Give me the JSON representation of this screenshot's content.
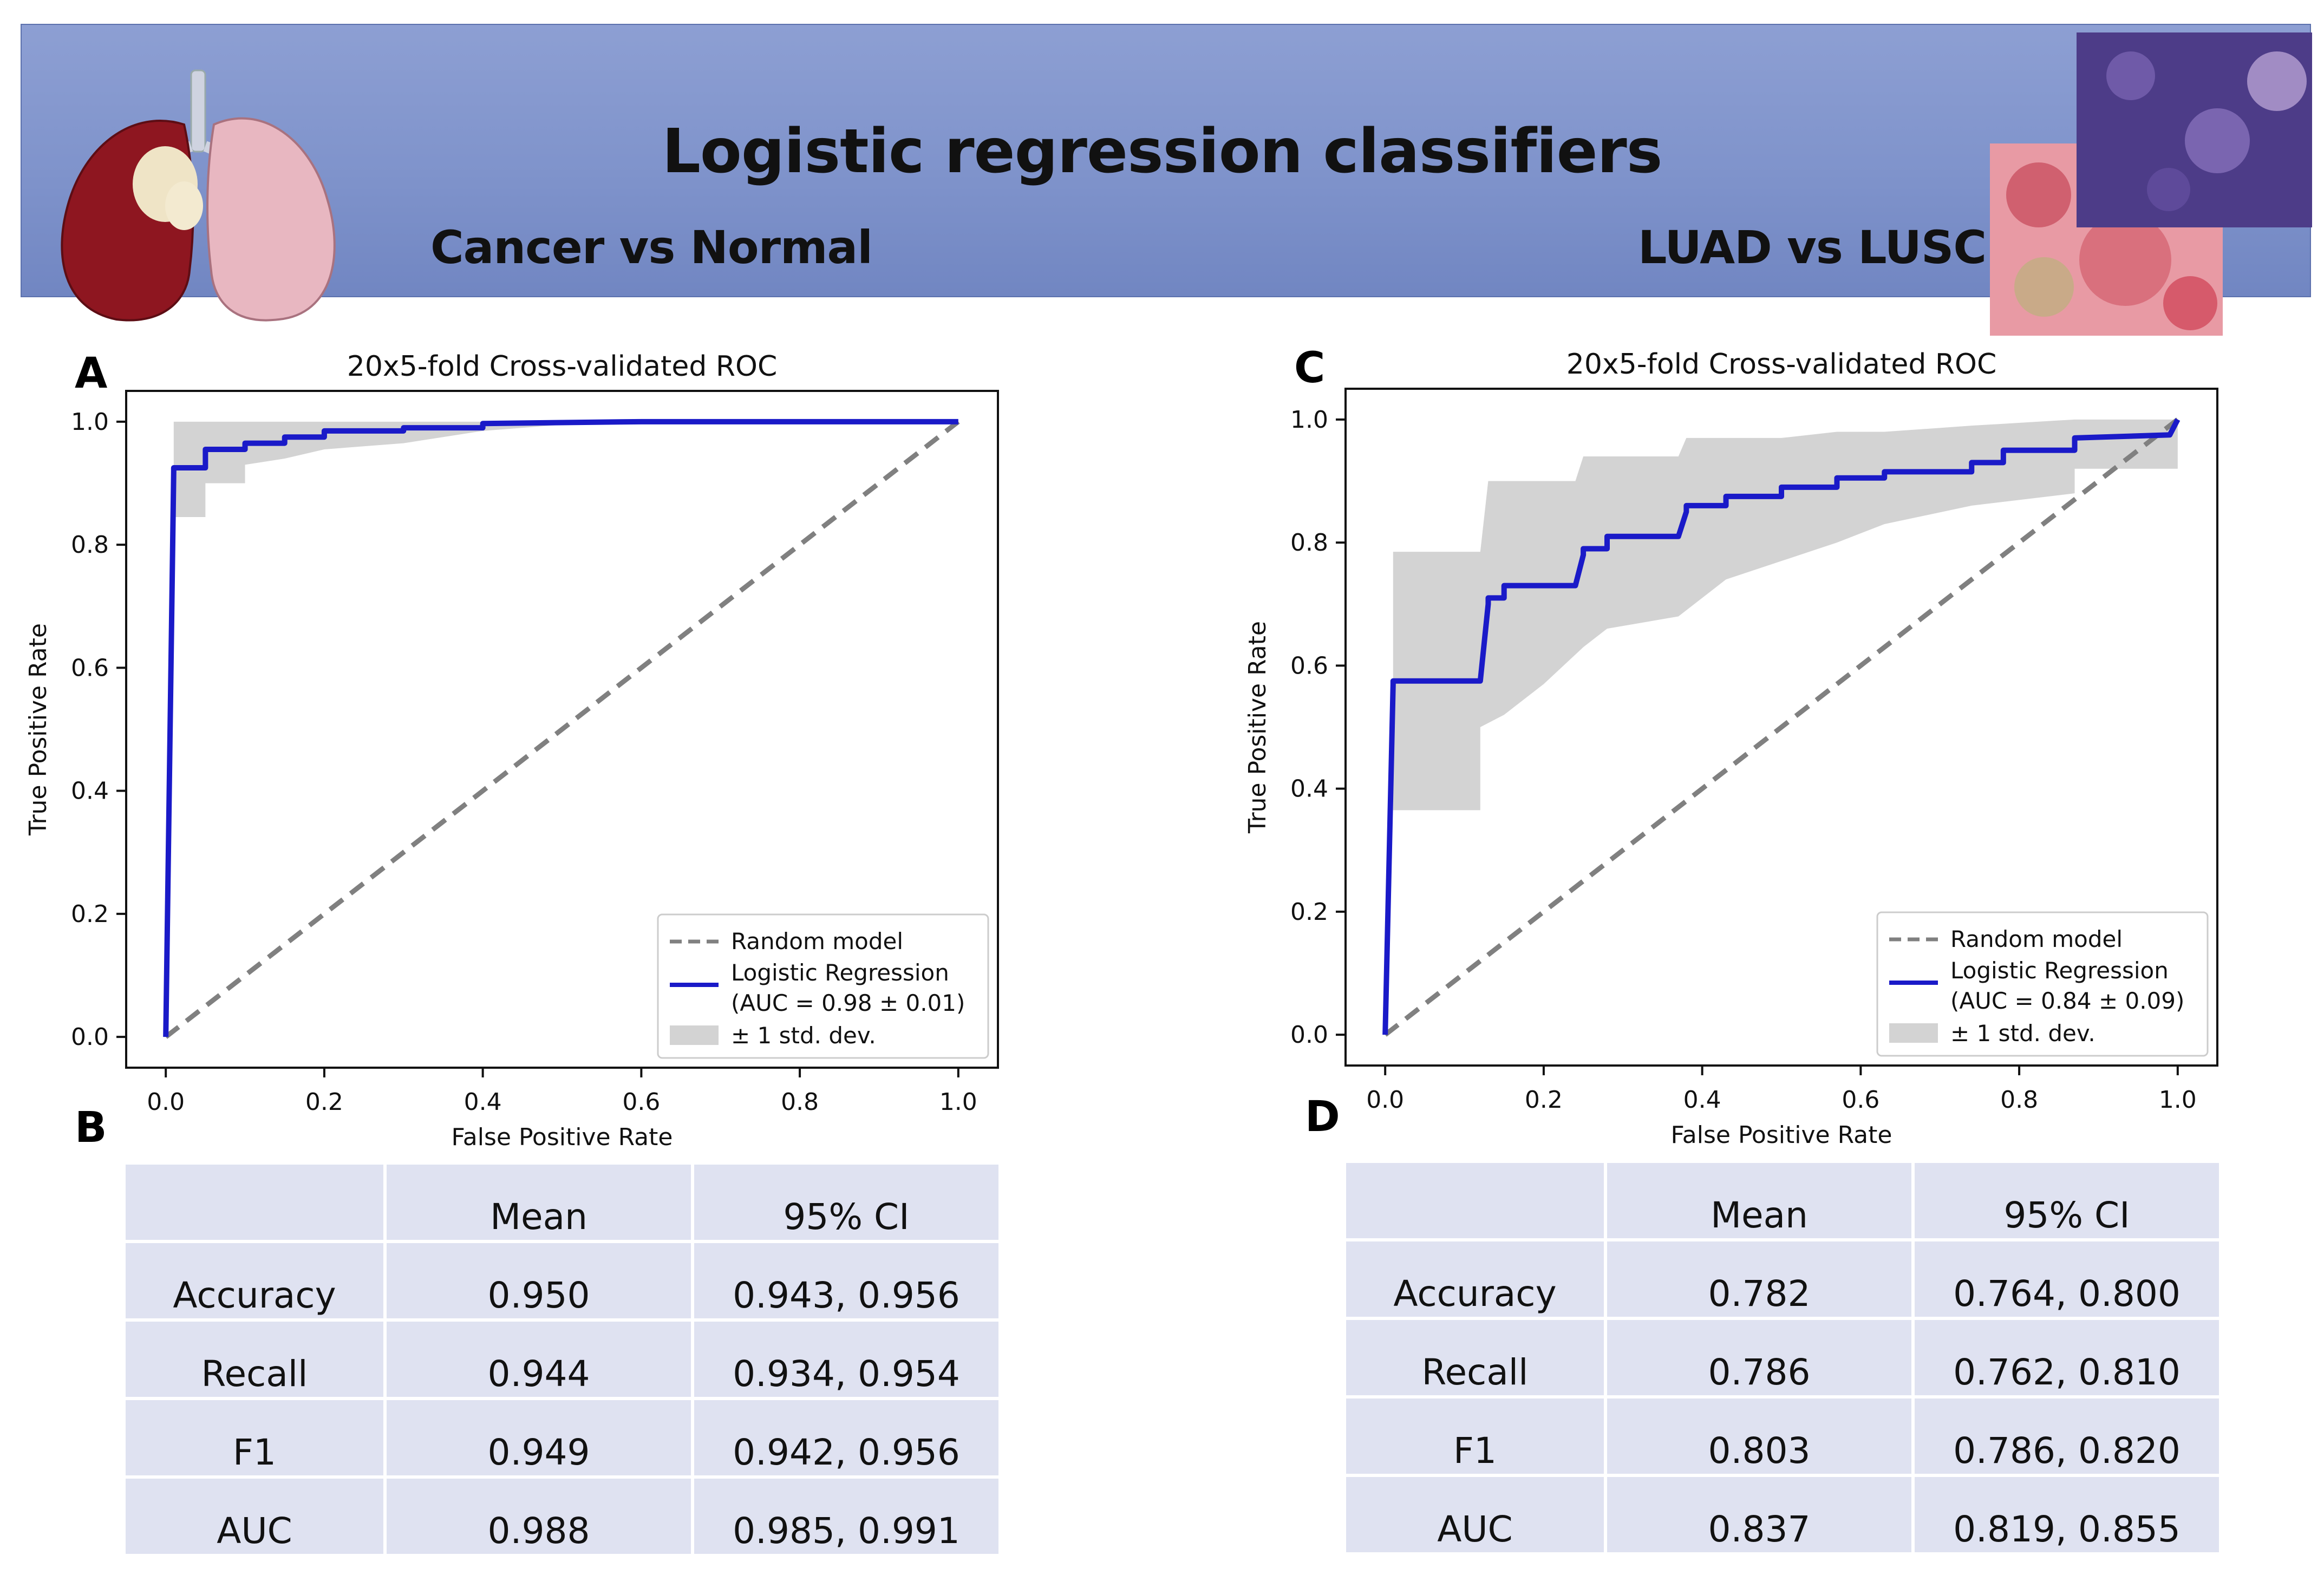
{
  "banner": {
    "title": "Logistic regression classifiers",
    "left_subtitle": "Cancer vs Normal",
    "right_subtitle": "LUAD vs LUSC"
  },
  "colors": {
    "banner": "#7f93cb",
    "mean_roc": "#1a1ac8",
    "random": "#808080",
    "std_band": "#d3d3d3",
    "table_cell": "#dfe2f1"
  },
  "chart_data": [
    {
      "panel": "A",
      "type": "line",
      "title": "20x5-fold Cross-validated ROC",
      "xlabel": "False Positive Rate",
      "ylabel": "True Positive Rate",
      "xlim": [
        -0.05,
        1.05
      ],
      "ylim": [
        -0.05,
        1.05
      ],
      "xticks": [
        "0.0",
        "0.2",
        "0.4",
        "0.6",
        "0.8",
        "1.0"
      ],
      "yticks": [
        "0.0",
        "0.2",
        "0.4",
        "0.6",
        "0.8",
        "1.0"
      ],
      "legend_position": "lower-right",
      "legend": [
        "Random model",
        "Logistic Regression",
        "(AUC = 0.98 ± 0.01)",
        "± 1 std. dev."
      ],
      "series": [
        {
          "name": "Random model",
          "style": "dashed",
          "x": [
            0,
            1
          ],
          "y": [
            0,
            1
          ]
        },
        {
          "name": "Logistic Regression",
          "x": [
            0,
            0.01,
            0.01,
            0.05,
            0.05,
            0.1,
            0.1,
            0.15,
            0.15,
            0.2,
            0.2,
            0.3,
            0.3,
            0.4,
            0.4,
            0.6,
            1.0
          ],
          "y": [
            0,
            0.92,
            0.925,
            0.925,
            0.955,
            0.955,
            0.965,
            0.965,
            0.975,
            0.975,
            0.985,
            0.985,
            0.99,
            0.99,
            0.997,
            1.0,
            1.0
          ]
        },
        {
          "name": "± 1 std. dev.",
          "upper_x": [
            0.01,
            1.0
          ],
          "upper_y": [
            1.0,
            1.0
          ],
          "lower_x": [
            0.01,
            0.05,
            0.05,
            0.1,
            0.1,
            0.15,
            0.2,
            0.3,
            0.4,
            0.5,
            0.6,
            1.0
          ],
          "lower_y": [
            0.845,
            0.845,
            0.9,
            0.9,
            0.93,
            0.94,
            0.955,
            0.965,
            0.985,
            0.995,
            1.0,
            1.0
          ]
        }
      ]
    },
    {
      "panel": "C",
      "type": "line",
      "title": "20x5-fold Cross-validated ROC",
      "xlabel": "False Positive Rate",
      "ylabel": "True Positive Rate",
      "xlim": [
        -0.05,
        1.05
      ],
      "ylim": [
        -0.05,
        1.05
      ],
      "xticks": [
        "0.0",
        "0.2",
        "0.4",
        "0.6",
        "0.8",
        "1.0"
      ],
      "yticks": [
        "0.0",
        "0.2",
        "0.4",
        "0.6",
        "0.8",
        "1.0"
      ],
      "legend_position": "lower-right",
      "legend": [
        "Random model",
        "Logistic Regression",
        "(AUC = 0.84 ± 0.09)",
        "± 1 std. dev."
      ],
      "series": [
        {
          "name": "Random model",
          "style": "dashed",
          "x": [
            0,
            1
          ],
          "y": [
            0,
            1
          ]
        },
        {
          "name": "Logistic Regression",
          "x": [
            0,
            0.01,
            0.01,
            0.12,
            0.13,
            0.13,
            0.15,
            0.15,
            0.24,
            0.25,
            0.25,
            0.28,
            0.28,
            0.37,
            0.38,
            0.38,
            0.43,
            0.43,
            0.5,
            0.5,
            0.57,
            0.57,
            0.63,
            0.63,
            0.74,
            0.74,
            0.78,
            0.78,
            0.87,
            0.87,
            0.99,
            1.0
          ],
          "y": [
            0,
            0.57,
            0.575,
            0.575,
            0.7,
            0.71,
            0.71,
            0.73,
            0.73,
            0.78,
            0.79,
            0.79,
            0.81,
            0.81,
            0.85,
            0.86,
            0.86,
            0.875,
            0.875,
            0.89,
            0.89,
            0.905,
            0.905,
            0.915,
            0.915,
            0.93,
            0.93,
            0.95,
            0.95,
            0.97,
            0.975,
            1.0
          ]
        },
        {
          "name": "± 1 std. dev.",
          "upper_x": [
            0.01,
            0.12,
            0.13,
            0.24,
            0.25,
            0.37,
            0.38,
            0.43,
            0.5,
            0.57,
            0.63,
            0.74,
            0.87,
            1.0
          ],
          "upper_y": [
            0.785,
            0.785,
            0.9,
            0.9,
            0.94,
            0.94,
            0.97,
            0.97,
            0.97,
            0.98,
            0.98,
            0.99,
            1.0,
            1.0
          ],
          "lower_x": [
            0.01,
            0.12,
            0.12,
            0.15,
            0.2,
            0.25,
            0.28,
            0.37,
            0.43,
            0.5,
            0.57,
            0.63,
            0.74,
            0.87,
            0.87,
            1.0
          ],
          "lower_y": [
            0.365,
            0.365,
            0.5,
            0.52,
            0.57,
            0.63,
            0.66,
            0.68,
            0.74,
            0.77,
            0.8,
            0.83,
            0.86,
            0.88,
            0.92,
            0.92
          ]
        }
      ]
    }
  ],
  "tables": {
    "B": {
      "header": [
        "",
        "Mean",
        "95% CI"
      ],
      "rows": [
        [
          "Accuracy",
          "0.950",
          "0.943, 0.956"
        ],
        [
          "Recall",
          "0.944",
          "0.934, 0.954"
        ],
        [
          "F1",
          "0.949",
          "0.942, 0.956"
        ],
        [
          "AUC",
          "0.988",
          "0.985, 0.991"
        ]
      ]
    },
    "D": {
      "header": [
        "",
        "Mean",
        "95% CI"
      ],
      "rows": [
        [
          "Accuracy",
          "0.782",
          "0.764, 0.800"
        ],
        [
          "Recall",
          "0.786",
          "0.762, 0.810"
        ],
        [
          "F1",
          "0.803",
          "0.786, 0.820"
        ],
        [
          "AUC",
          "0.837",
          "0.819, 0.855"
        ]
      ]
    }
  },
  "panels": {
    "a": "A",
    "b": "B",
    "c": "C",
    "d": "D"
  }
}
